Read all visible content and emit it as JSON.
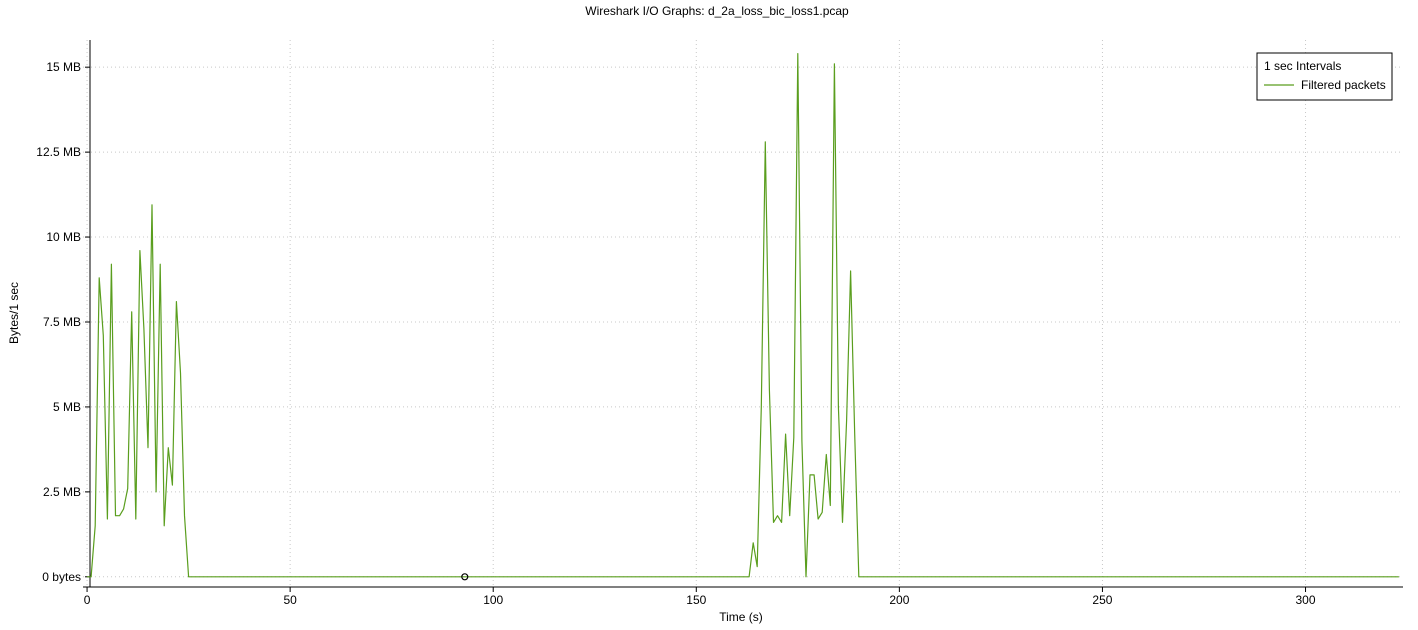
{
  "window": {
    "title": "Wireshark I/O Graphs: d_2a_loss_bic_loss1.pcap"
  },
  "chart_data": {
    "type": "line",
    "title": "Wireshark I/O Graphs: d_2a_loss_bic_loss1.pcap",
    "xlabel": "Time (s)",
    "ylabel": "Bytes/1 sec",
    "xlim": [
      -1,
      324
    ],
    "ylim": [
      -0.3,
      15.8
    ],
    "x_ticks": [
      0,
      50,
      100,
      150,
      200,
      250,
      300
    ],
    "x_tick_labels": [
      "0",
      "50",
      "100",
      "150",
      "200",
      "250",
      "300"
    ],
    "y_ticks": [
      0,
      2.5,
      5,
      7.5,
      10,
      12.5,
      15
    ],
    "y_tick_labels": [
      "0 bytes",
      "2.5 MB",
      "5 MB",
      "7.5 MB",
      "10 MB",
      "12.5 MB",
      "15 MB"
    ],
    "y_unit": "MB",
    "grid": true,
    "legend_position": "top-right",
    "legend_title": "1 sec Intervals",
    "series": [
      {
        "name": "Filtered packets",
        "color": "#5a9e1e",
        "x": [
          0,
          1,
          2,
          3,
          4,
          5,
          6,
          7,
          8,
          9,
          10,
          11,
          12,
          13,
          14,
          15,
          16,
          17,
          18,
          19,
          20,
          21,
          22,
          23,
          24,
          25,
          26,
          162,
          163,
          164,
          165,
          166,
          167,
          168,
          169,
          170,
          171,
          172,
          173,
          174,
          175,
          176,
          177,
          178,
          179,
          180,
          181,
          182,
          183,
          184,
          185,
          186,
          187,
          188,
          189,
          190,
          191,
          323
        ],
        "values": [
          0,
          0,
          1.5,
          8.8,
          7.1,
          1.7,
          9.2,
          1.8,
          1.8,
          2.0,
          2.6,
          7.8,
          1.7,
          9.6,
          7.3,
          3.8,
          10.95,
          2.5,
          9.2,
          1.5,
          3.8,
          2.7,
          8.1,
          6.0,
          1.8,
          0,
          0,
          0,
          0,
          1.0,
          0.3,
          5.0,
          12.8,
          5.5,
          1.6,
          1.8,
          1.6,
          4.2,
          1.8,
          4.1,
          15.4,
          4.0,
          0,
          3.0,
          3.0,
          1.7,
          1.9,
          3.6,
          2.1,
          15.1,
          5.0,
          1.6,
          4.6,
          9.0,
          4.2,
          0,
          0,
          0
        ]
      }
    ],
    "annotations": [
      {
        "type": "marker",
        "shape": "circle",
        "x": 93,
        "y": 0
      }
    ]
  }
}
